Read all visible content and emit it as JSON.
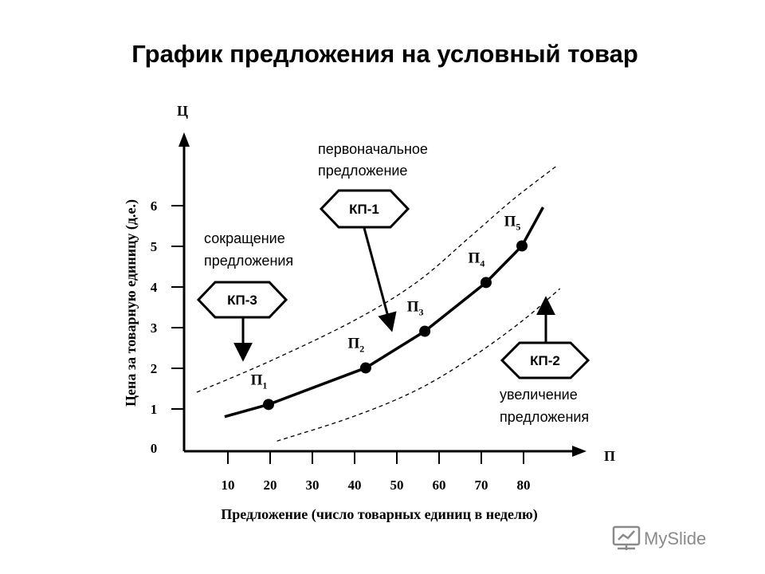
{
  "chart_data": {
    "type": "line",
    "title": "График предложения на условный товар",
    "xlabel": "Предложение (число товарных единиц в неделю)",
    "ylabel": "Цена за товарную единицу (д.е.)",
    "x_axis_letter": "П",
    "y_axis_letter": "Ц",
    "x_ticks": [
      10,
      20,
      30,
      40,
      50,
      60,
      70,
      80
    ],
    "y_ticks": [
      0,
      1,
      2,
      3,
      4,
      5,
      6
    ],
    "xlim": [
      0,
      90
    ],
    "ylim": [
      0,
      7
    ],
    "series": [
      {
        "name": "supply",
        "x": [
          9.6,
          20,
          43,
          57,
          71.5,
          80,
          85
        ],
        "y": [
          0.85,
          1.15,
          2.05,
          2.95,
          4.15,
          5.05,
          6.0
        ]
      }
    ],
    "points": [
      {
        "label": "П",
        "sub": "1",
        "x": 20,
        "y": 1.15
      },
      {
        "label": "П",
        "sub": "2",
        "x": 43,
        "y": 2.05
      },
      {
        "label": "П",
        "sub": "3",
        "x": 57,
        "y": 2.95
      },
      {
        "label": "П",
        "sub": "4",
        "x": 71.5,
        "y": 4.15
      },
      {
        "label": "П",
        "sub": "5",
        "x": 80,
        "y": 5.05
      }
    ],
    "shifted_curves": [
      {
        "name": "сокращение предложения",
        "x": [
          3,
          20,
          40,
          55,
          68,
          78,
          88
        ],
        "y": [
          1.45,
          2.2,
          3.2,
          4.15,
          5.3,
          6.2,
          7.0
        ]
      },
      {
        "name": "увеличение предложения",
        "x": [
          22,
          40,
          55,
          68,
          80,
          89
        ],
        "y": [
          0.25,
          0.85,
          1.5,
          2.3,
          3.2,
          4.0
        ]
      }
    ],
    "annotations": {
      "initial": [
        "первоначальное",
        "предложение"
      ],
      "decrease": [
        "сокращение",
        "предложения"
      ],
      "increase": [
        "увеличение",
        "предложения"
      ]
    },
    "badges": {
      "kp1": "КП-1",
      "kp2": "КП-2",
      "kp3": "КП-3"
    }
  },
  "watermark": "MySlide"
}
